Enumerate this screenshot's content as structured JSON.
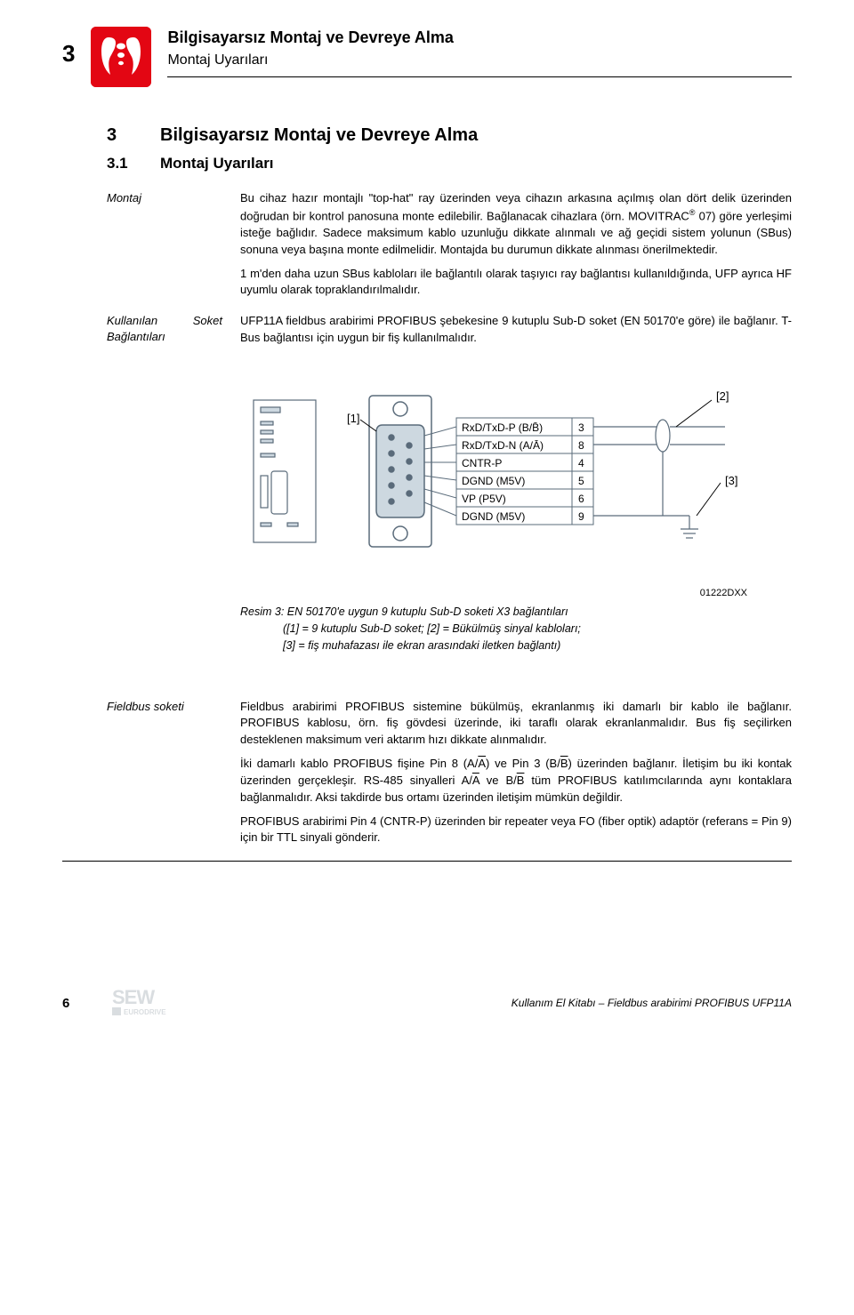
{
  "header": {
    "page_num_top": "3",
    "title_bold": "Bilgisayarsız Montaj ve Devreye Alma",
    "title_sub": "Montaj Uyarıları"
  },
  "section": {
    "num": "3",
    "title": "Bilgisayarsız Montaj ve Devreye Alma"
  },
  "subsection": {
    "num": "3.1",
    "title": "Montaj Uyarıları"
  },
  "montaj": {
    "label": "Montaj",
    "para1_a": "Bu cihaz hazır montajlı \"top-hat\" ray üzerinden veya cihazın arkasına açılmış olan dört delik üzerinden doğrudan bir kontrol panosuna monte edilebilir. Bağlanacak cihazlara (örn. MOVITRAC",
    "para1_b": " 07) göre yerleşimi isteğe bağlıdır. Sadece maksimum kablo uzunluğu dikkate alınmalı ve ağ geçidi sistem yolunun (SBus) sonuna veya başına monte edilmelidir. Montajda bu durumun dikkate alınması önerilmektedir.",
    "para2": "1 m'den daha uzun SBus kabloları ile bağlantılı olarak taşıyıcı ray bağlantısı kullanıldığında, UFP ayrıca HF uyumlu olarak topraklandırılmalıdır."
  },
  "soket": {
    "label": "Kullanılan Soket Bağlantıları",
    "para": "UFP11A fieldbus arabirimi PROFIBUS şebekesine 9 kutuplu Sub-D soket (EN 50170'e göre) ile bağlanır. T-Bus bağlantısı için uygun bir fiş kullanılmalıdır."
  },
  "figure": {
    "code": "01222DXX",
    "caption_line1": "Resim 3: EN 50170'e uygun 9 kutuplu Sub-D soketi X3 bağlantıları",
    "caption_line2": "([1] = 9 kutuplu Sub-D soket; [2] = Bükülmüş sinyal kabloları;",
    "caption_line3": "[3] = fiş muhafazası ile ekran arasındaki iletken bağlantı)",
    "callouts": {
      "c1": "[1]",
      "c2": "[2]",
      "c3": "[3]"
    },
    "pinout": {
      "rows": [
        {
          "label": "RxD/TxD-P (B/B̄)",
          "pin": "3"
        },
        {
          "label": "RxD/TxD-N (A/Ā)",
          "pin": "8"
        },
        {
          "label": "CNTR-P",
          "pin": "4"
        },
        {
          "label": "DGND (M5V)",
          "pin": "5"
        },
        {
          "label": "VP (P5V)",
          "pin": "6"
        },
        {
          "label": "DGND (M5V)",
          "pin": "9"
        }
      ]
    },
    "colors": {
      "stroke": "#5a6b7a",
      "fill": "#cdd8e0",
      "text": "#000000",
      "bg": "#ffffff"
    }
  },
  "fieldbus": {
    "label": "Fieldbus soketi",
    "para1": "Fieldbus arabirimi PROFIBUS sistemine bükülmüş, ekranlanmış iki damarlı bir kablo ile bağlanır. PROFIBUS kablosu, örn. fiş gövdesi üzerinde, iki taraflı olarak ekranlanmalıdır. Bus fiş seçilirken desteklenen maksimum veri aktarım hızı dikkate alınmalıdır.",
    "para2_a": "İki damarlı kablo PROFIBUS fişine Pin 8 (A/",
    "para2_b": ") ve Pin 3 (B/",
    "para2_c": ") üzerinden bağlanır. İletişim bu iki kontak üzerinden gerçekleşir. RS-485 sinyalleri A/",
    "para2_d": " ve B/",
    "para2_e": " tüm PROFIBUS katılımcılarında aynı kontaklara bağlanmalıdır. Aksi takdirde bus ortamı üzerinden iletişim mümkün değildir.",
    "overA": "A",
    "overB": "B",
    "para3": "PROFIBUS arabirimi Pin 4 (CNTR-P) üzerinden bir repeater veya FO (fiber optik) adaptör (referans = Pin 9) için bir TTL sinyali gönderir."
  },
  "footer": {
    "pagenum": "6",
    "text": "Kullanım El Kitabı – Fieldbus arabirimi PROFIBUS UFP11A",
    "logo_main": "SEW",
    "logo_sub": "EURODRIVE"
  }
}
